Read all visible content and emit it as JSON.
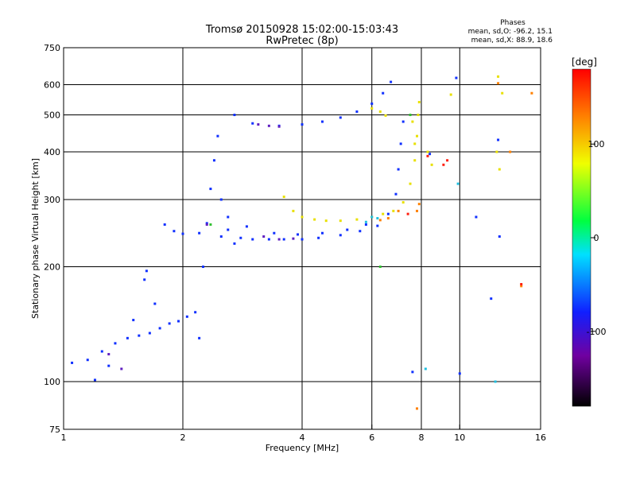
{
  "header": {
    "title_line1": "Tromsø 20150928 15:02:00-15:03:43",
    "title_line2": "RwPretec (8p)",
    "stats_title": "Phases",
    "stats_o": "mean, sd,O: -96.2, 15.1",
    "stats_x": "mean, sd,X:  88.9, 18.6"
  },
  "colorbar": {
    "unit": "[deg]",
    "ticks": [
      "100",
      "0",
      "-100"
    ],
    "tick_values": [
      100,
      0,
      -100
    ],
    "range": [
      -180,
      180
    ],
    "colormap": "rainbow (black-purple-blue-cyan-green-yellow-orange-red)"
  },
  "chart_data": {
    "type": "scatter",
    "xlabel": "Frequency [MHz]",
    "ylabel": "Stationary phase Virtual Height [km]",
    "x_scale": "log",
    "y_scale": "log",
    "xlim": [
      1,
      16
    ],
    "ylim": [
      75,
      750
    ],
    "x_ticks": [
      {
        "value": 1,
        "label": "1"
      },
      {
        "value": 2,
        "label": "2"
      },
      {
        "value": 4,
        "label": "4"
      },
      {
        "value": 6,
        "label": "6"
      },
      {
        "value": 8,
        "label": "8"
      },
      {
        "value": 10,
        "label": "10"
      },
      {
        "value": 16,
        "label": "16"
      }
    ],
    "y_ticks": [
      {
        "value": 75,
        "label": "75"
      },
      {
        "value": 100,
        "label": "100"
      },
      {
        "value": 200,
        "label": "200"
      },
      {
        "value": 300,
        "label": "300"
      },
      {
        "value": 400,
        "label": "400"
      },
      {
        "value": 500,
        "label": "500"
      },
      {
        "value": 600,
        "label": "600"
      },
      {
        "value": 750,
        "label": "750"
      }
    ],
    "x_grid": [
      2,
      4,
      6,
      8,
      10
    ],
    "y_grid": [
      100,
      200,
      300,
      400,
      500,
      600
    ],
    "grid": true,
    "series": [
      {
        "color": "#1030ff",
        "points": [
          [
            1.05,
            112
          ],
          [
            1.15,
            114
          ],
          [
            1.25,
            120
          ],
          [
            1.35,
            126
          ],
          [
            1.45,
            130
          ],
          [
            1.55,
            132
          ],
          [
            1.65,
            134
          ],
          [
            1.75,
            138
          ],
          [
            1.85,
            142
          ],
          [
            1.95,
            144
          ],
          [
            2.05,
            148
          ],
          [
            2.15,
            152
          ],
          [
            1.2,
            101
          ],
          [
            1.3,
            110
          ],
          [
            1.5,
            145
          ],
          [
            1.6,
            185
          ],
          [
            1.62,
            195
          ],
          [
            1.7,
            160
          ],
          [
            2.2,
            130
          ],
          [
            2.25,
            200
          ],
          [
            2.3,
            260
          ],
          [
            2.35,
            320
          ],
          [
            2.4,
            380
          ],
          [
            2.45,
            440
          ],
          [
            2.5,
            300
          ],
          [
            2.6,
            250
          ],
          [
            2.7,
            230
          ],
          [
            1.8,
            258
          ],
          [
            1.9,
            248
          ],
          [
            2.0,
            244
          ],
          [
            2.2,
            245
          ],
          [
            2.5,
            240
          ],
          [
            2.8,
            238
          ],
          [
            3.0,
            236
          ],
          [
            3.3,
            236
          ],
          [
            3.6,
            236
          ],
          [
            4.0,
            236
          ],
          [
            4.4,
            238
          ],
          [
            5.0,
            242
          ],
          [
            5.6,
            248
          ],
          [
            6.2,
            256
          ],
          [
            6.6,
            275
          ],
          [
            6.9,
            310
          ],
          [
            7.0,
            360
          ],
          [
            7.1,
            420
          ],
          [
            7.2,
            480
          ],
          [
            2.7,
            500
          ],
          [
            3.0,
            475
          ],
          [
            3.5,
            468
          ],
          [
            4.0,
            472
          ],
          [
            4.5,
            480
          ],
          [
            5.0,
            492
          ],
          [
            5.5,
            510
          ],
          [
            6.0,
            535
          ],
          [
            6.4,
            570
          ],
          [
            6.7,
            610
          ],
          [
            2.6,
            270
          ],
          [
            2.9,
            255
          ],
          [
            3.4,
            245
          ],
          [
            3.9,
            243
          ],
          [
            4.5,
            245
          ],
          [
            5.2,
            250
          ],
          [
            5.8,
            258
          ],
          [
            9.8,
            625
          ],
          [
            12.5,
            430
          ],
          [
            12.6,
            240
          ],
          [
            11.0,
            270
          ],
          [
            12.0,
            165
          ],
          [
            10.0,
            105
          ],
          [
            8.4,
            395
          ],
          [
            7.6,
            106
          ]
        ]
      },
      {
        "color": "#6020c0",
        "points": [
          [
            3.1,
            472
          ],
          [
            3.3,
            468
          ],
          [
            3.5,
            466
          ],
          [
            3.2,
            240
          ],
          [
            3.5,
            236
          ],
          [
            3.8,
            237
          ],
          [
            2.3,
            258
          ],
          [
            1.3,
            118
          ],
          [
            1.4,
            108
          ]
        ]
      },
      {
        "color": "#e8e000",
        "points": [
          [
            3.6,
            305
          ],
          [
            3.8,
            280
          ],
          [
            4.0,
            270
          ],
          [
            4.3,
            266
          ],
          [
            4.6,
            264
          ],
          [
            5.0,
            264
          ],
          [
            5.5,
            266
          ],
          [
            6.0,
            270
          ],
          [
            6.4,
            275
          ],
          [
            6.8,
            280
          ],
          [
            7.2,
            295
          ],
          [
            7.5,
            330
          ],
          [
            7.7,
            380
          ],
          [
            7.8,
            440
          ],
          [
            7.85,
            500
          ],
          [
            7.9,
            540
          ],
          [
            7.6,
            480
          ],
          [
            7.7,
            420
          ],
          [
            8.3,
            400
          ],
          [
            8.5,
            370
          ],
          [
            6.0,
            520
          ],
          [
            6.3,
            510
          ],
          [
            6.5,
            498
          ],
          [
            9.5,
            565
          ],
          [
            12.4,
            400
          ],
          [
            12.6,
            360
          ],
          [
            12.8,
            570
          ],
          [
            12.5,
            630
          ]
        ]
      },
      {
        "color": "#20c0e0",
        "points": [
          [
            6.0,
            270
          ],
          [
            6.2,
            268
          ],
          [
            5.8,
            262
          ],
          [
            8.2,
            108
          ],
          [
            9.9,
            330
          ],
          [
            12.3,
            100
          ]
        ]
      },
      {
        "color": "#ff8000",
        "points": [
          [
            6.3,
            265
          ],
          [
            6.6,
            268
          ],
          [
            7.0,
            280
          ],
          [
            7.8,
            280
          ],
          [
            7.9,
            292
          ],
          [
            7.8,
            85
          ],
          [
            12.5,
            605
          ],
          [
            13.4,
            400
          ],
          [
            14.3,
            178
          ],
          [
            15.2,
            570
          ]
        ]
      },
      {
        "color": "#30c030",
        "points": [
          [
            6.3,
            200
          ],
          [
            2.35,
            258
          ],
          [
            7.5,
            500
          ]
        ]
      },
      {
        "color": "#ff2010",
        "points": [
          [
            7.4,
            275
          ],
          [
            14.3,
            180
          ],
          [
            9.1,
            370
          ],
          [
            9.3,
            380
          ],
          [
            8.3,
            390
          ]
        ]
      }
    ]
  }
}
